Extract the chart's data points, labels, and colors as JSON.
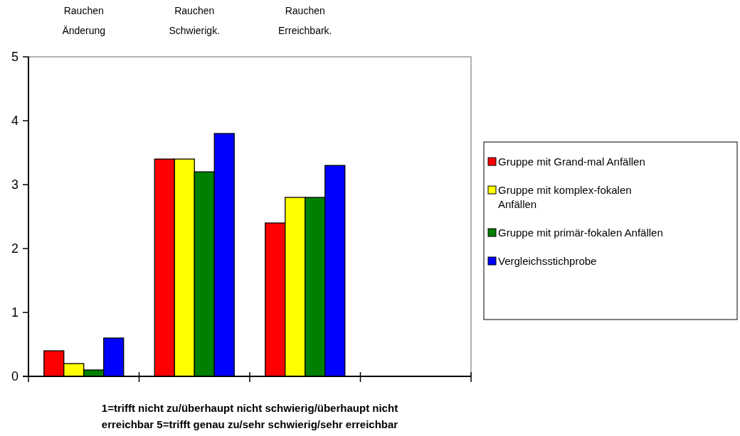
{
  "chart_data": {
    "type": "bar",
    "xlabel": "1=trifft nicht zu/überhaupt nicht schwierig/überhaupt nicht erreichbar  5=trifft genau zu/sehr schwierig/sehr erreichbar",
    "categories": [
      "Rauchen Änderung",
      "Rauchen Schwierigk.",
      "Rauchen Erreichbark.",
      null
    ],
    "series": [
      {
        "name": "Gruppe mit Grand-mal Anfällen",
        "color": "#ff0000",
        "values": [
          0.4,
          3.4,
          2.4,
          null
        ]
      },
      {
        "name": "Gruppe mit komplex-fokalen Anfällen",
        "color": "#ffff00",
        "values": [
          0.2,
          3.4,
          2.8,
          null
        ]
      },
      {
        "name": "Gruppe mit primär-fokalen Anfällen",
        "color": "#008000",
        "values": [
          0.1,
          3.2,
          2.8,
          null
        ]
      },
      {
        "name": "Vergleichsstichprobe",
        "color": "#0000ff",
        "values": [
          0.6,
          3.8,
          3.3,
          null
        ]
      }
    ],
    "ylim": [
      0,
      5
    ],
    "yticks": [
      0,
      1,
      2,
      3,
      4,
      5
    ],
    "grid": false,
    "legend": "right"
  }
}
